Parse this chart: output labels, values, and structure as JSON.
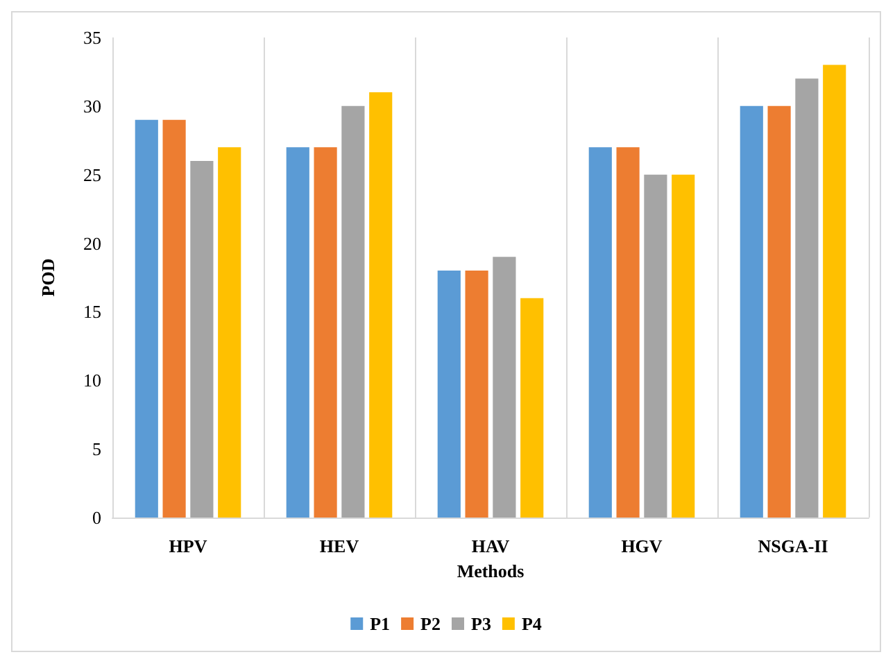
{
  "chart_data": {
    "type": "bar",
    "xlabel": "Methods",
    "ylabel": "POD",
    "categories": [
      "HPV",
      "HEV",
      "HAV",
      "HGV",
      "NSGA-II"
    ],
    "series": [
      {
        "name": "P1",
        "color": "#5b9bd5",
        "values": [
          29,
          27,
          18,
          27,
          30
        ]
      },
      {
        "name": "P2",
        "color": "#ed7d31",
        "values": [
          29,
          27,
          18,
          27,
          30
        ]
      },
      {
        "name": "P3",
        "color": "#a5a5a5",
        "values": [
          26,
          30,
          19,
          25,
          32
        ]
      },
      {
        "name": "P4",
        "color": "#ffc000",
        "values": [
          27,
          31,
          16,
          25,
          33
        ]
      }
    ],
    "ylim": [
      0,
      35
    ],
    "yticks": [
      0,
      5,
      10,
      15,
      20,
      25,
      30,
      35
    ],
    "grid": "x",
    "legend": "bottom"
  }
}
